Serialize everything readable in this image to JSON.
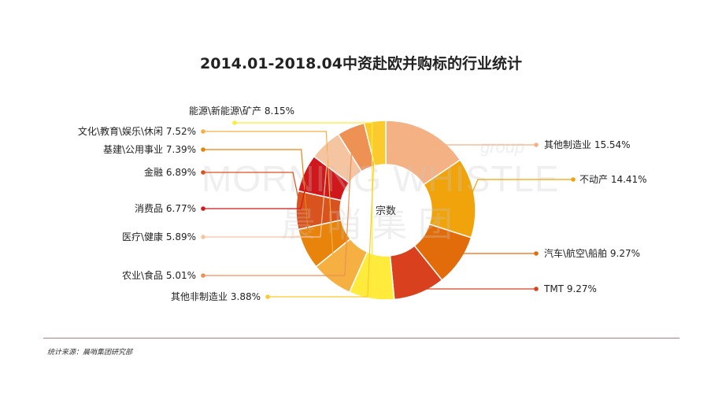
{
  "chart_data": {
    "type": "pie",
    "title": "2014.01-2018.04中资赴欧并购标的行业统计",
    "center_label": "宗数",
    "unit": "%",
    "slices": [
      {
        "label": "其他制造业",
        "value": 15.54,
        "color": "#F4B183",
        "side": "right"
      },
      {
        "label": "不动产",
        "value": 14.41,
        "color": "#F0A30A",
        "side": "right"
      },
      {
        "label": "汽车\\航空\\船舶",
        "value": 9.27,
        "color": "#E36C0A",
        "side": "right"
      },
      {
        "label": "TMT",
        "value": 9.27,
        "color": "#D9411E",
        "side": "right"
      },
      {
        "label": "能源\\新能源\\矿产",
        "value": 8.15,
        "color": "#FFEB3B",
        "side": "left"
      },
      {
        "label": "文化\\教育\\娱乐\\休闲",
        "value": 7.52,
        "color": "#F5B041",
        "side": "left"
      },
      {
        "label": "基建\\公用事业",
        "value": 7.39,
        "color": "#E8830C",
        "side": "left"
      },
      {
        "label": "金融",
        "value": 6.89,
        "color": "#D9531E",
        "side": "left"
      },
      {
        "label": "消费品",
        "value": 6.77,
        "color": "#D0181C",
        "side": "left"
      },
      {
        "label": "医疗\\健康",
        "value": 5.89,
        "color": "#F5C4A0",
        "side": "left"
      },
      {
        "label": "农业\\食品",
        "value": 5.01,
        "color": "#EE9154",
        "side": "left"
      },
      {
        "label": "其他非制造业",
        "value": 3.88,
        "color": "#FBCB2E",
        "side": "left"
      }
    ]
  },
  "watermark": {
    "latin": "MORNING WHISTLE",
    "group": "group",
    "chinese": "晨 哨 集 团"
  },
  "footer": {
    "source": "统计来源：晨哨集团研究部"
  }
}
